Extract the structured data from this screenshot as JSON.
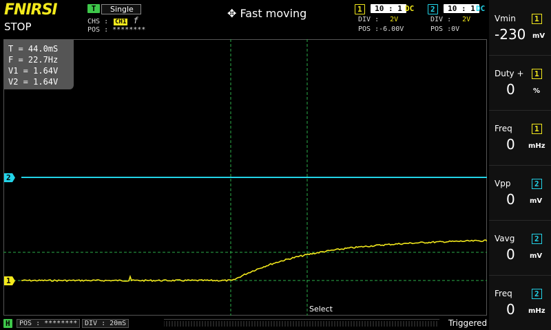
{
  "header": {
    "brand": "FNIRSI",
    "run_state": "STOP",
    "mode": "Fast moving"
  },
  "trigger": {
    "tag": "T",
    "mode": "Single",
    "chs_label": "CHS :",
    "chs_value": "CH1",
    "edge": "f",
    "pos_label": "POS : ********"
  },
  "channel1": {
    "id": "1",
    "probe": "10 : 1",
    "coupling": "DC",
    "div_label": "DIV :",
    "div_value": "2V",
    "pos_label": "POS :",
    "pos_value": "-6.00V",
    "color": "#f3e91c"
  },
  "channel2": {
    "id": "2",
    "probe": "10 : 1",
    "coupling": "DC",
    "div_label": "DIV :",
    "div_value": "2V",
    "pos_label": "POS :",
    "pos_value": "0V",
    "color": "#22d3e8"
  },
  "cursor_info": {
    "t": "T = 44.0mS",
    "f": "F = 22.7Hz",
    "v1": "V1 = 1.64V",
    "v2": "V2 = 1.64V"
  },
  "markers": {
    "ch1": "1",
    "ch2": "2"
  },
  "select_label": "Select",
  "horizontal": {
    "tag": "H",
    "pos": "POS : ********",
    "div": "DIV : 20mS"
  },
  "trigger_status": "Triggered",
  "measurements": [
    {
      "name": "Vmin",
      "channel": "1",
      "value": "-230",
      "unit": "mV"
    },
    {
      "name": "Duty +",
      "channel": "1",
      "value": "0",
      "unit": "%"
    },
    {
      "name": "Freq",
      "channel": "1",
      "value": "0",
      "unit": "mHz"
    },
    {
      "name": "Vpp",
      "channel": "2",
      "value": "0",
      "unit": "mV"
    },
    {
      "name": "Vavg",
      "channel": "2",
      "value": "0",
      "unit": "mV"
    },
    {
      "name": "Freq",
      "channel": "2",
      "value": "0",
      "unit": "mHz"
    }
  ],
  "icons": {
    "mode_icon": "move-arrows-icon",
    "edge_icon": "rising-edge-icon"
  }
}
